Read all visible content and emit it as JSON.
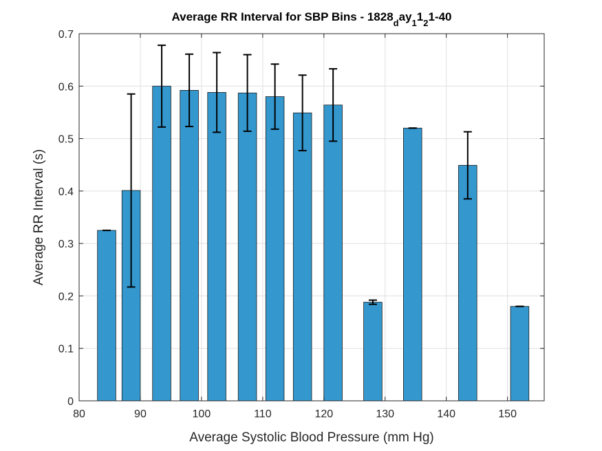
{
  "chart_data": {
    "type": "bar",
    "title_parts": [
      "Average RR Interval for SBP Bins - 1828",
      "d",
      "ay",
      "1",
      "1",
      "2",
      "1-40"
    ],
    "xlabel": "Average Systolic Blood Pressure (mm Hg)",
    "ylabel": "Average RR Interval (s)",
    "xlim": [
      80,
      156
    ],
    "ylim": [
      0,
      0.7
    ],
    "xticks": [
      80,
      90,
      100,
      110,
      120,
      130,
      140,
      150
    ],
    "yticks": [
      0,
      0.1,
      0.2,
      0.3,
      0.4,
      0.5,
      0.6,
      0.7
    ],
    "grid": true,
    "bar_color": "#3498cf",
    "error_color": "#000000",
    "x": [
      84.5,
      88.5,
      93.5,
      98,
      102.5,
      107.5,
      112,
      116.5,
      121.5,
      128,
      134.5,
      143.5,
      152
    ],
    "values": [
      0.325,
      0.401,
      0.6,
      0.592,
      0.588,
      0.587,
      0.58,
      0.549,
      0.564,
      0.188,
      0.52,
      0.449,
      0.18
    ],
    "errors": [
      0.0,
      0.184,
      0.078,
      0.069,
      0.076,
      0.073,
      0.062,
      0.072,
      0.069,
      0.004,
      0.0,
      0.064,
      0.0
    ]
  }
}
